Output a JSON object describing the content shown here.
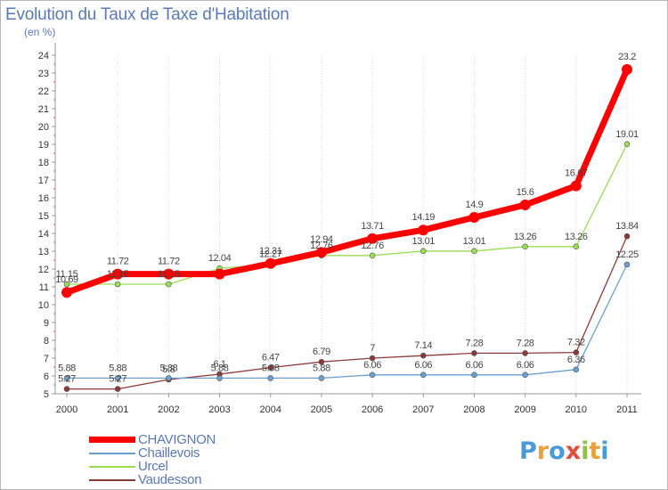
{
  "header": {
    "title": "Evolution du Taux de Taxe d'Habitation",
    "unit": "(en %)"
  },
  "logo": {
    "text": "Proxiti"
  },
  "chart_data": {
    "type": "line",
    "title": "Evolution du Taux de Taxe d'Habitation",
    "ylabel": "(en %)",
    "ylim": [
      5,
      24
    ],
    "yticks": [
      "5",
      "6",
      "7",
      "8",
      "9",
      "10",
      "11",
      "12",
      "13",
      "14",
      "15",
      "16",
      "17",
      "18",
      "19",
      "20",
      "21",
      "22",
      "23",
      "24"
    ],
    "categories": [
      "2000",
      "2001",
      "2002",
      "2003",
      "2004",
      "2005",
      "2006",
      "2007",
      "2008",
      "2009",
      "2010",
      "2011"
    ],
    "grid": "dotted vertical",
    "legend_position": "bottom-left",
    "series": [
      {
        "name": "CHAVIGNON",
        "color": "#ff0000",
        "values": [
          10.69,
          11.72,
          11.72,
          11.72,
          12.31,
          12.94,
          13.71,
          14.19,
          14.9,
          15.6,
          16.67,
          23.2
        ],
        "labels": [
          "10.69",
          "11.72",
          "11.72",
          "",
          "12.31",
          "12.94",
          "13.71",
          "14.19",
          "14.9",
          "15.6",
          "16.67",
          "23.2"
        ]
      },
      {
        "name": "Chaillevois",
        "color": "#6a9fd0",
        "values": [
          5.88,
          5.88,
          5.88,
          5.88,
          5.88,
          5.88,
          6.06,
          6.06,
          6.06,
          6.06,
          6.36,
          12.25
        ],
        "labels": [
          "5.88",
          "5.88",
          "5.88",
          "5.88",
          "5.88",
          "5.88",
          "6.06",
          "6.06",
          "6.06",
          "6.06",
          "6.36",
          "12.25"
        ]
      },
      {
        "name": "Urcel",
        "color": "#99dd55",
        "values": [
          11.15,
          11.15,
          11.15,
          12.04,
          12.27,
          12.76,
          12.76,
          13.01,
          13.01,
          13.26,
          13.26,
          19.01
        ],
        "labels": [
          "11.15",
          "11.15",
          "11.15",
          "12.04",
          "12.27",
          "12.76",
          "12.76",
          "13.01",
          "13.01",
          "13.26",
          "13.26",
          "19.01"
        ]
      },
      {
        "name": "Vaudesson",
        "color": "#8b3a3a",
        "values": [
          5.27,
          5.27,
          5.8,
          6.1,
          6.47,
          6.79,
          7.0,
          7.14,
          7.28,
          7.28,
          7.32,
          13.84
        ],
        "labels": [
          "5.27",
          "5.27",
          "5.8",
          "6.1",
          "6.47",
          "6.79",
          "7",
          "7.14",
          "7.28",
          "7.28",
          "7.32",
          "13.84"
        ]
      }
    ]
  }
}
